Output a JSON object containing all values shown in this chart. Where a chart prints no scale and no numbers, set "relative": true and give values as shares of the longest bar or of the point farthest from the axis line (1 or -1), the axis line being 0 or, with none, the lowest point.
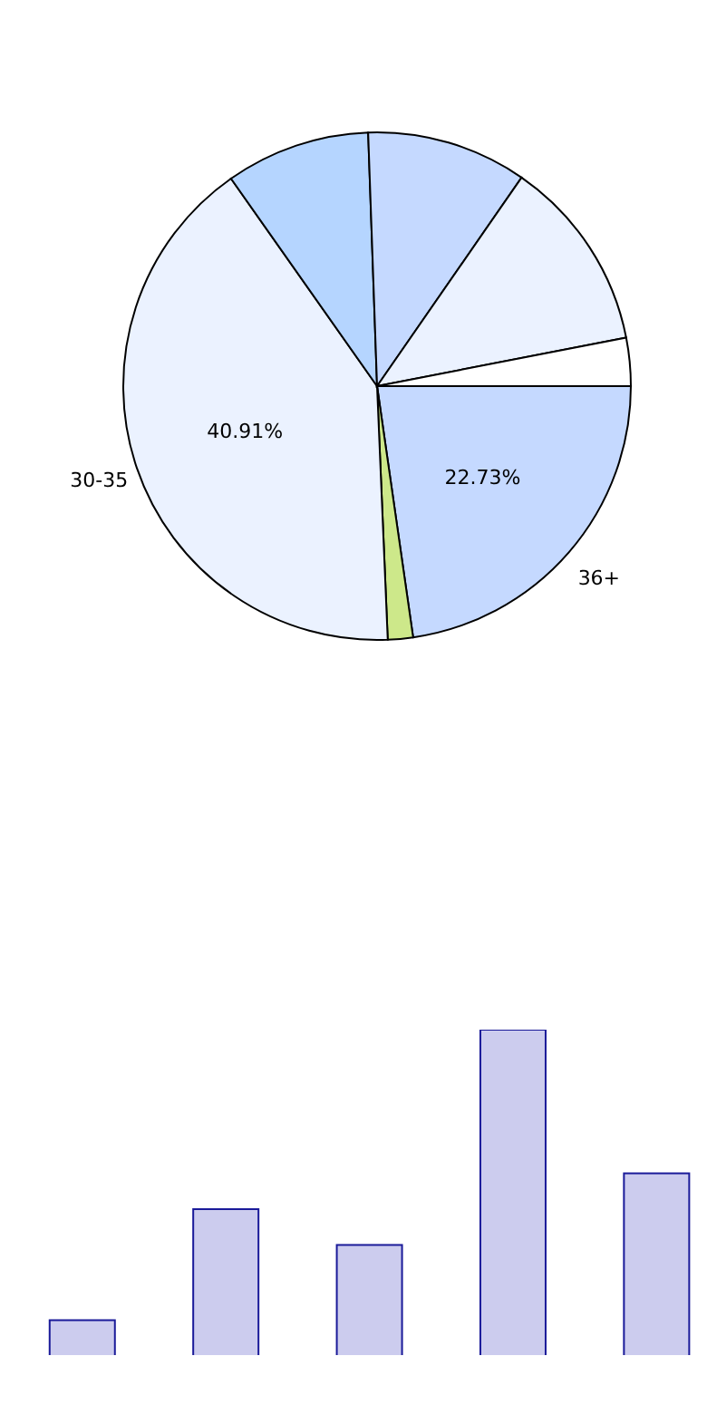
{
  "chart_data": [
    {
      "type": "pie",
      "categories": [
        "36+",
        null,
        "30-35",
        null,
        null,
        null,
        null
      ],
      "values": [
        22.73,
        1.6,
        40.91,
        9.2,
        10.2,
        12.3,
        3.06
      ],
      "value_labels": [
        "22.73%",
        null,
        "40.91%",
        null,
        null,
        null,
        null
      ],
      "colors": [
        "#c5d9ff",
        "#cde88a",
        "#ebf2ff",
        "#b5d5ff",
        "#c5d9ff",
        "#ebf2ff",
        "#ffffff"
      ]
    },
    {
      "type": "bar",
      "relative": true,
      "categories": [
        null,
        null,
        null,
        null,
        null
      ],
      "values": [
        0.11,
        0.45,
        0.34,
        1,
        0.56
      ],
      "color": "#ccccee"
    }
  ]
}
